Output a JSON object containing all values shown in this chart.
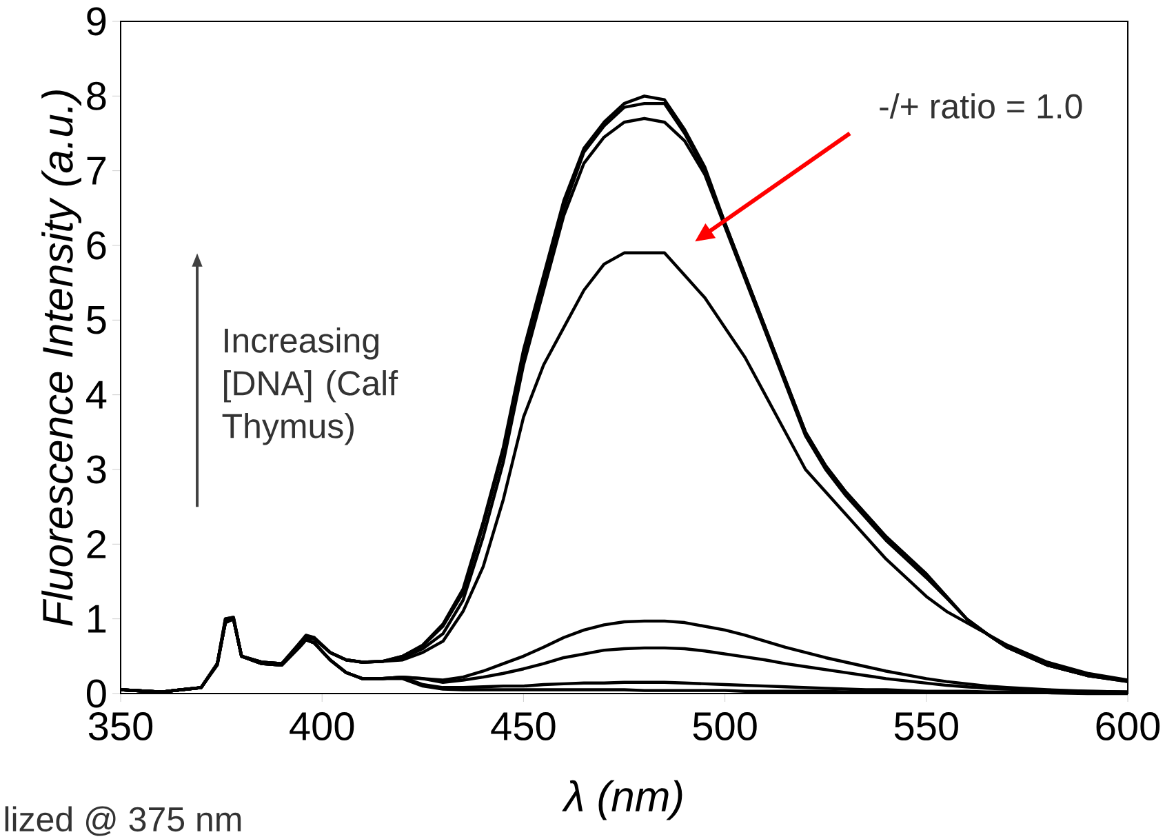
{
  "chart_data": {
    "type": "line",
    "xlabel": "λ (nm)",
    "ylabel": "Fluorescence Intensity (a.u.)",
    "x": [
      350,
      360,
      370,
      374,
      376,
      378,
      380,
      385,
      390,
      394,
      396,
      398,
      402,
      406,
      410,
      415,
      420,
      425,
      430,
      435,
      440,
      445,
      450,
      455,
      460,
      465,
      470,
      475,
      480,
      485,
      490,
      495,
      500,
      505,
      510,
      515,
      520,
      525,
      530,
      535,
      540,
      545,
      550,
      555,
      560,
      565,
      570,
      580,
      590,
      600
    ],
    "series": [
      {
        "color": "#000000",
        "values": [
          0.05,
          0.02,
          0.08,
          0.4,
          1.0,
          1.02,
          0.5,
          0.42,
          0.4,
          0.65,
          0.78,
          0.75,
          0.55,
          0.45,
          0.42,
          0.43,
          0.5,
          0.65,
          0.93,
          1.4,
          2.3,
          3.3,
          4.6,
          5.6,
          6.6,
          7.3,
          7.65,
          7.9,
          8.0,
          7.95,
          7.55,
          7.05,
          6.3,
          5.6,
          4.9,
          4.2,
          3.5,
          3.05,
          2.7,
          2.4,
          2.1,
          1.85,
          1.6,
          1.3,
          1.0,
          0.8,
          0.62,
          0.38,
          0.24,
          0.17
        ]
      },
      {
        "color": "#000000",
        "values": [
          0.05,
          0.02,
          0.08,
          0.4,
          0.98,
          1.0,
          0.5,
          0.42,
          0.4,
          0.64,
          0.76,
          0.74,
          0.55,
          0.45,
          0.42,
          0.43,
          0.5,
          0.64,
          0.9,
          1.35,
          2.25,
          3.25,
          4.5,
          5.5,
          6.5,
          7.25,
          7.6,
          7.85,
          7.9,
          7.9,
          7.5,
          7.0,
          6.3,
          5.6,
          4.9,
          4.2,
          3.5,
          3.05,
          2.7,
          2.4,
          2.1,
          1.85,
          1.6,
          1.3,
          1.0,
          0.8,
          0.62,
          0.38,
          0.24,
          0.16
        ]
      },
      {
        "color": "#000000",
        "values": [
          0.05,
          0.02,
          0.08,
          0.38,
          0.96,
          1.0,
          0.5,
          0.42,
          0.4,
          0.63,
          0.75,
          0.73,
          0.55,
          0.45,
          0.42,
          0.43,
          0.48,
          0.6,
          0.8,
          1.25,
          2.1,
          3.1,
          4.4,
          5.4,
          6.4,
          7.1,
          7.45,
          7.65,
          7.7,
          7.65,
          7.4,
          6.95,
          6.25,
          5.55,
          4.85,
          4.15,
          3.45,
          3.0,
          2.65,
          2.35,
          2.05,
          1.8,
          1.55,
          1.28,
          1.0,
          0.8,
          0.62,
          0.38,
          0.24,
          0.16
        ]
      },
      {
        "color": "#000000",
        "values": [
          0.05,
          0.02,
          0.08,
          0.4,
          1.0,
          1.02,
          0.5,
          0.42,
          0.4,
          0.65,
          0.77,
          0.75,
          0.55,
          0.45,
          0.42,
          0.43,
          0.45,
          0.55,
          0.7,
          1.1,
          1.7,
          2.6,
          3.7,
          4.4,
          4.9,
          5.4,
          5.75,
          5.9,
          5.9,
          5.9,
          5.6,
          5.3,
          4.9,
          4.5,
          4.0,
          3.5,
          3.0,
          2.7,
          2.4,
          2.1,
          1.8,
          1.55,
          1.3,
          1.1,
          0.95,
          0.8,
          0.65,
          0.42,
          0.27,
          0.18
        ]
      },
      {
        "color": "#000000",
        "values": [
          0.05,
          0.02,
          0.08,
          0.4,
          0.95,
          1.0,
          0.5,
          0.4,
          0.38,
          0.6,
          0.72,
          0.68,
          0.45,
          0.28,
          0.2,
          0.2,
          0.22,
          0.2,
          0.18,
          0.22,
          0.3,
          0.4,
          0.5,
          0.62,
          0.75,
          0.85,
          0.92,
          0.96,
          0.97,
          0.97,
          0.95,
          0.9,
          0.85,
          0.78,
          0.7,
          0.62,
          0.55,
          0.48,
          0.42,
          0.36,
          0.3,
          0.25,
          0.2,
          0.16,
          0.13,
          0.1,
          0.08,
          0.05,
          0.03,
          0.02
        ]
      },
      {
        "color": "#000000",
        "values": [
          0.05,
          0.02,
          0.08,
          0.4,
          0.95,
          1.0,
          0.5,
          0.4,
          0.38,
          0.6,
          0.72,
          0.68,
          0.45,
          0.28,
          0.2,
          0.2,
          0.22,
          0.2,
          0.15,
          0.18,
          0.22,
          0.27,
          0.33,
          0.4,
          0.48,
          0.53,
          0.58,
          0.6,
          0.61,
          0.61,
          0.6,
          0.57,
          0.53,
          0.49,
          0.45,
          0.4,
          0.36,
          0.32,
          0.28,
          0.24,
          0.2,
          0.17,
          0.14,
          0.11,
          0.09,
          0.07,
          0.06,
          0.04,
          0.03,
          0.02
        ]
      },
      {
        "color": "#000000",
        "values": [
          0.05,
          0.02,
          0.08,
          0.4,
          0.95,
          1.0,
          0.5,
          0.4,
          0.38,
          0.6,
          0.72,
          0.68,
          0.45,
          0.28,
          0.2,
          0.2,
          0.22,
          0.12,
          0.08,
          0.08,
          0.09,
          0.1,
          0.1,
          0.12,
          0.13,
          0.14,
          0.14,
          0.15,
          0.15,
          0.15,
          0.14,
          0.13,
          0.12,
          0.11,
          0.1,
          0.09,
          0.08,
          0.07,
          0.06,
          0.05,
          0.05,
          0.04,
          0.03,
          0.03,
          0.03,
          0.02,
          0.02,
          0.01,
          0.01,
          0.01
        ]
      },
      {
        "color": "#000000",
        "values": [
          0.05,
          0.02,
          0.08,
          0.4,
          0.95,
          1.0,
          0.5,
          0.4,
          0.38,
          0.6,
          0.72,
          0.68,
          0.45,
          0.28,
          0.2,
          0.2,
          0.2,
          0.1,
          0.06,
          0.05,
          0.05,
          0.05,
          0.05,
          0.05,
          0.05,
          0.05,
          0.05,
          0.05,
          0.04,
          0.04,
          0.04,
          0.04,
          0.04,
          0.03,
          0.03,
          0.03,
          0.03,
          0.03,
          0.02,
          0.02,
          0.02,
          0.02,
          0.02,
          0.01,
          0.01,
          0.01,
          0.01,
          0.01,
          0.0,
          0.0
        ]
      }
    ],
    "xlim": [
      350,
      600
    ],
    "ylim": [
      0,
      9
    ],
    "xticks": [
      350,
      400,
      450,
      500,
      550,
      600
    ],
    "yticks": [
      0,
      1,
      2,
      3,
      4,
      5,
      6,
      7,
      8,
      9
    ],
    "grid": false,
    "marker": "none",
    "line_style": "solid",
    "annotations": [
      "-/+ ratio = 1.0",
      "Increasing [DNA] (Calf Thymus)",
      "lized @ 375 nm"
    ]
  }
}
